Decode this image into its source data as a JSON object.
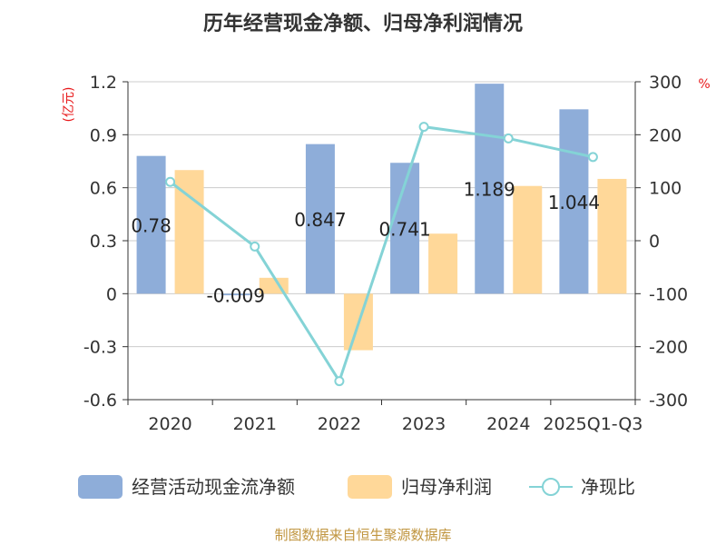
{
  "chart_data": {
    "type": "bar+line",
    "title": "历年经营现金净额、归母净利润情况",
    "categories": [
      "2020",
      "2021",
      "2022",
      "2023",
      "2024",
      "2025Q1-Q3"
    ],
    "series": [
      {
        "name": "经营活动现金流净额",
        "kind": "bar",
        "axis": "left",
        "color": "#8eadd9",
        "values": [
          0.78,
          -0.009,
          0.847,
          0.741,
          1.189,
          1.044
        ],
        "labels": [
          "0.78",
          "-0.009",
          "0.847",
          "0.741",
          "1.189",
          "1.044"
        ]
      },
      {
        "name": "归母净利润",
        "kind": "bar",
        "axis": "left",
        "color": "#ffd899",
        "values": [
          0.7,
          0.09,
          -0.32,
          0.34,
          0.61,
          0.65
        ]
      },
      {
        "name": "净现比",
        "kind": "line",
        "axis": "right",
        "color": "#84d3d6",
        "values": [
          111,
          -11,
          -265,
          215,
          193,
          158
        ]
      }
    ],
    "left_axis": {
      "unit": "(亿元)",
      "min": -0.6,
      "max": 1.2,
      "ticks": [
        1.2,
        0.9,
        0.6,
        0.3,
        0,
        -0.3,
        -0.6
      ],
      "tick_labels": [
        "1.2",
        "0.9",
        "0.6",
        "0.3",
        "0",
        "-0.3",
        "-0.6"
      ]
    },
    "right_axis": {
      "unit": "%",
      "min": -300,
      "max": 300,
      "ticks": [
        300,
        200,
        100,
        0,
        -100,
        -200,
        -300
      ],
      "tick_labels": [
        "300",
        "200",
        "100",
        "0",
        "-100",
        "-200",
        "-300"
      ]
    },
    "grid": true,
    "legend": "bottom",
    "source": "制图数据来自恒生聚源数据库"
  }
}
